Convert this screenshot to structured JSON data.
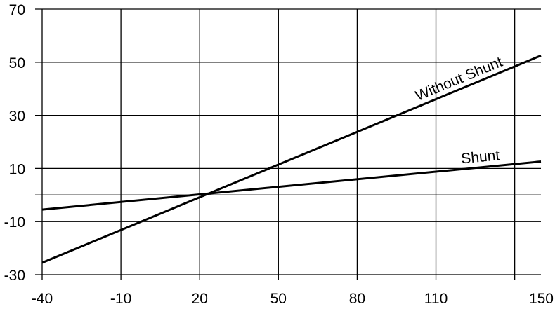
{
  "chart_data": {
    "type": "line",
    "title": "",
    "xlabel": "",
    "ylabel": "",
    "xlim": [
      -40,
      150
    ],
    "ylim": [
      -30,
      70
    ],
    "x_ticks": [
      -40,
      -10,
      20,
      50,
      80,
      110,
      150
    ],
    "x_gridlines": [
      -40,
      -10,
      20,
      50,
      80,
      110,
      140
    ],
    "y_ticks": [
      -30,
      -10,
      10,
      30,
      50,
      70
    ],
    "y_gridlines": [
      -30,
      -10,
      0,
      10,
      30,
      50,
      70
    ],
    "grid": true,
    "series": [
      {
        "name": "Without Shunt",
        "x": [
          -40,
          150
        ],
        "y": [
          -25.5,
          52.5
        ],
        "color": "#000000"
      },
      {
        "name": "Shunt",
        "x": [
          -40,
          150
        ],
        "y": [
          -5.5,
          12.6
        ],
        "color": "#000000"
      }
    ]
  }
}
